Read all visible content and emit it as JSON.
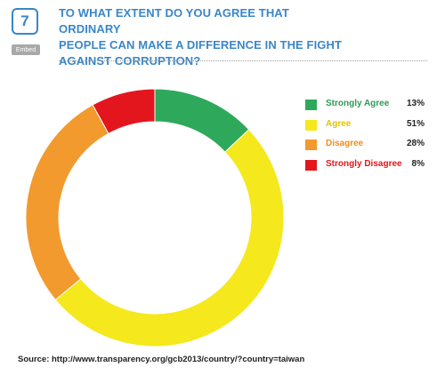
{
  "question": {
    "number": "7",
    "embed_label": "Embed",
    "title_lines": [
      "TO WHAT EXTENT DO YOU AGREE THAT ORDINARY",
      "PEOPLE CAN MAKE A DIFFERENCE IN THE FIGHT",
      "AGAINST CORRUPTION?"
    ]
  },
  "chart_data": {
    "type": "pie",
    "variant": "donut",
    "title": "TO WHAT EXTENT DO YOU AGREE THAT ORDINARY PEOPLE CAN MAKE A DIFFERENCE IN THE FIGHT AGAINST CORRUPTION?",
    "legend_position": "right",
    "categories": [
      "Strongly Agree",
      "Agree",
      "Disagree",
      "Strongly Disagree"
    ],
    "values": [
      13,
      51,
      28,
      8
    ],
    "value_labels": [
      "13%",
      "51%",
      "28%",
      "8%"
    ],
    "colors": [
      "#2ea85a",
      "#f5e81c",
      "#f29a2e",
      "#e3161e"
    ],
    "label_colors": [
      "#2e9a55",
      "#e1c400",
      "#f08c1c",
      "#e3161e"
    ]
  },
  "source": "Source: http://www.transparency.org/gcb2013/country/?country=taiwan"
}
